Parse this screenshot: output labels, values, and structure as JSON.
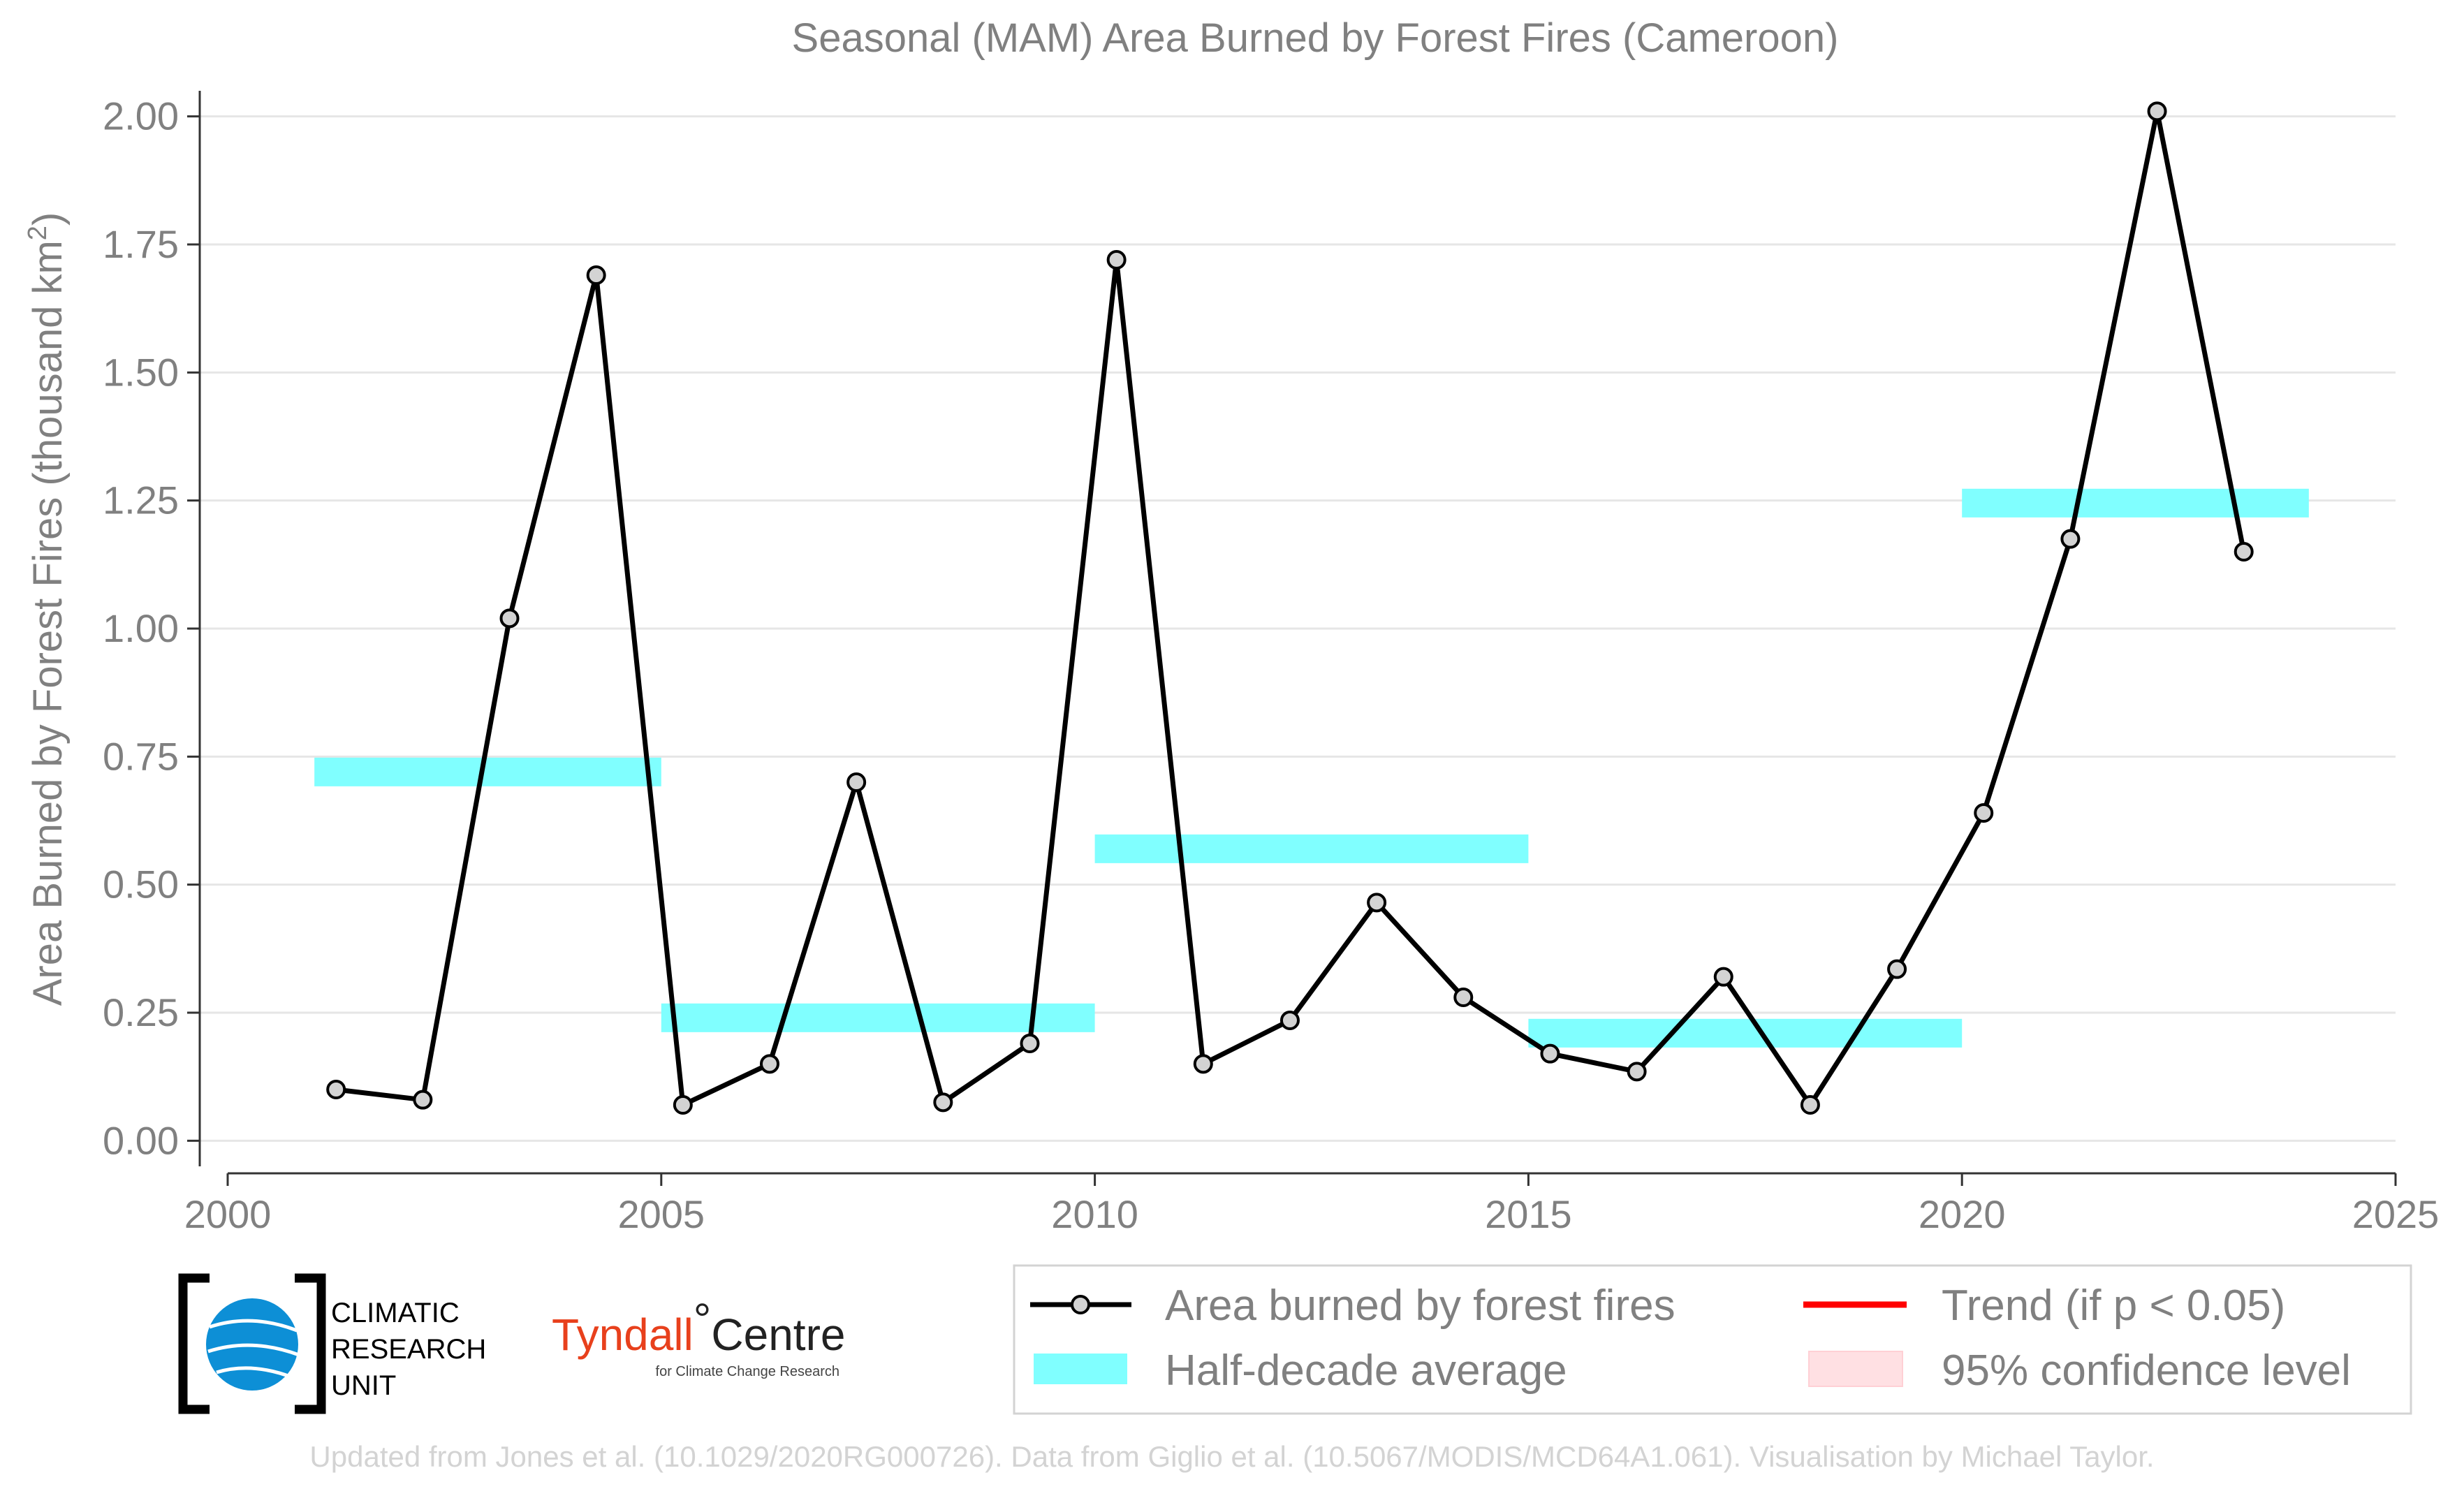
{
  "chart_data": {
    "type": "line",
    "title": "Seasonal (MAM) Area Burned by Forest Fires (Cameroon)",
    "ylabel": "Area Burned by Forest Fires (thousand km",
    "ylabel_sup": "2",
    "ylabel_close": ")",
    "xlim": [
      2000,
      2025
    ],
    "ylim": [
      -0.05,
      2.05
    ],
    "x_ticks": [
      2000,
      2005,
      2010,
      2015,
      2020,
      2025
    ],
    "x_tick_labels": [
      "2000",
      "2005",
      "2010",
      "2015",
      "2020",
      "2025"
    ],
    "y_ticks": [
      0,
      0.25,
      0.5,
      0.75,
      1.0,
      1.25,
      1.5,
      1.75,
      2.0
    ],
    "y_tick_labels": [
      "0.00",
      "0.25",
      "0.50",
      "0.75",
      "1.00",
      "1.25",
      "1.50",
      "1.75",
      "2.00"
    ],
    "grid": "horizontal",
    "legend_position": "bottom-right",
    "series": [
      {
        "name": "Area burned by forest fires",
        "color": "#000000",
        "marker_fill": "#d3d3d3",
        "x": [
          2001.25,
          2002.25,
          2003.25,
          2004.25,
          2005.25,
          2006.25,
          2007.25,
          2008.25,
          2009.25,
          2010.25,
          2011.25,
          2012.25,
          2013.25,
          2014.25,
          2015.25,
          2016.25,
          2017.25,
          2018.25,
          2019.25,
          2020.25,
          2021.25,
          2022.25,
          2023.25
        ],
        "y": [
          0.1,
          0.08,
          1.02,
          1.69,
          0.07,
          0.15,
          0.7,
          0.075,
          0.19,
          1.72,
          0.15,
          0.235,
          0.465,
          0.28,
          0.17,
          0.135,
          0.32,
          0.07,
          0.335,
          0.64,
          1.175,
          2.01,
          1.15
        ]
      }
    ],
    "half_decade_average": {
      "name": "Half-decade average",
      "color": "#80ffff",
      "segments": [
        {
          "x_start": 2001,
          "x_end": 2005,
          "y": 0.72
        },
        {
          "x_start": 2005,
          "x_end": 2010,
          "y": 0.24
        },
        {
          "x_start": 2010,
          "x_end": 2015,
          "y": 0.57
        },
        {
          "x_start": 2015,
          "x_end": 2020,
          "y": 0.21
        },
        {
          "x_start": 2020,
          "x_end": 2024,
          "y": 1.245
        }
      ]
    },
    "legend": [
      {
        "label": "Area burned by forest fires",
        "kind": "line-marker",
        "color": "#000000"
      },
      {
        "label": "Trend (if p < 0.05)",
        "kind": "line",
        "color": "#ff0000"
      },
      {
        "label": "Half-decade average",
        "kind": "patch",
        "color": "#80ffff"
      },
      {
        "label": "95% confidence level",
        "kind": "patch",
        "color": "#ffe0e3"
      }
    ]
  },
  "logos": {
    "cru": [
      "CLIMATIC",
      "RESEARCH",
      "UNIT"
    ],
    "tyndall_main": "Tyndall",
    "tyndall_degree": "°",
    "tyndall_centre": "Centre",
    "tyndall_sub": "for Climate Change Research"
  },
  "credit": "Updated from Jones et al. (10.1029/2020RG000726). Data from Giglio et al. (10.5067/MODIS/MCD64A1.061). Visualisation by Michael Taylor.",
  "colors": {
    "text": "#808080",
    "grid": "#e6e6e6",
    "credit": "#d3d3d3"
  }
}
